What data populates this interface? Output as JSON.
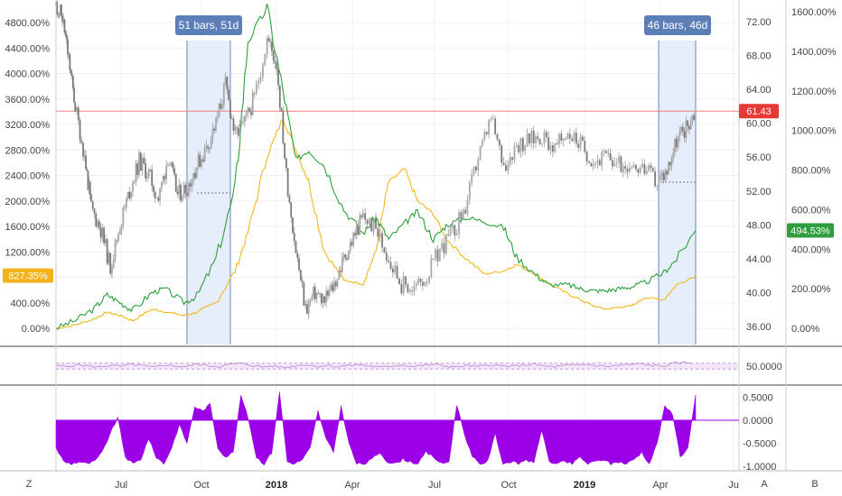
{
  "colors": {
    "green": "#2e9e3e",
    "orange": "#f2b81a",
    "grey": "#8c8c8c",
    "purple": "#9b00e6",
    "red_line": "#f08080",
    "range_fill": "#dce6fa",
    "range_badge": "#5d7fb8",
    "orange_badge": "#f5b31b",
    "green_badge": "#2e9e3e",
    "red_badge": "#e53935"
  },
  "ranges": [
    {
      "label": "51 bars, 51d"
    },
    {
      "label": "46 bars, 46d"
    }
  ],
  "badges": {
    "price": "61.43",
    "orange_pct": "827.35%",
    "green_pct": "494.53%"
  },
  "corner": {
    "left": "Z",
    "a": "A",
    "b": "B"
  },
  "chart_data": [
    {
      "type": "line",
      "name": "main-price-panel",
      "x_ticks": [
        "Jul",
        "Oct",
        "2018",
        "Apr",
        "Jul",
        "Oct",
        "2019",
        "Apr",
        "Ju"
      ],
      "left_axis": {
        "ticks": [
          "4800.00%",
          "4400.00%",
          "4000.00%",
          "3600.00%",
          "3200.00%",
          "2800.00%",
          "2400.00%",
          "2000.00%",
          "1600.00%",
          "1200.00%",
          "800.00%",
          "400.00%",
          "0.00%"
        ],
        "range": [
          0,
          5000
        ]
      },
      "price_axis": {
        "ticks": [
          "72.00",
          "68.00",
          "64.00",
          "60.00",
          "56.00",
          "52.00",
          "48.00",
          "44.00",
          "40.00",
          "36.00"
        ],
        "range": [
          34.4,
          75.0
        ]
      },
      "right_axis": {
        "ticks": [
          "1600.00%",
          "1400.00%",
          "1200.00%",
          "1000.00%",
          "800.00%",
          "600.00%",
          "400.00%",
          "200.00%",
          "0.00%"
        ],
        "range": [
          -30,
          1640
        ]
      },
      "grey_price_series": {
        "t": [
          0.0,
          0.01,
          0.02,
          0.03,
          0.045,
          0.055,
          0.07,
          0.085,
          0.1,
          0.115,
          0.13,
          0.145,
          0.16,
          0.175,
          0.19,
          0.205,
          0.22,
          0.235,
          0.25,
          0.265,
          0.28,
          0.295,
          0.31,
          0.33,
          0.345,
          0.36,
          0.375,
          0.39,
          0.405,
          0.42,
          0.435,
          0.45,
          0.465,
          0.48,
          0.5,
          0.52,
          0.54,
          0.56,
          0.58,
          0.6,
          0.62,
          0.64,
          0.66,
          0.68,
          0.7,
          0.72,
          0.74,
          0.76,
          0.78,
          0.8,
          0.82,
          0.84,
          0.86,
          0.88,
          0.9,
          0.92,
          0.94,
          0.955,
          0.97,
          0.985,
          1.0
        ],
        "v": [
          74.0,
          72.5,
          67.5,
          62.0,
          56.0,
          50.0,
          47.5,
          43.0,
          48.0,
          52.0,
          55.5,
          54.0,
          51.0,
          56.0,
          51.5,
          52.5,
          55.0,
          57.0,
          60.0,
          64.5,
          58.5,
          60.0,
          63.0,
          70.0,
          67.0,
          54.0,
          45.0,
          38.0,
          40.0,
          39.0,
          41.0,
          44.0,
          46.5,
          49.0,
          47.5,
          44.0,
          41.0,
          40.5,
          42.0,
          45.0,
          47.0,
          50.0,
          56.0,
          60.5,
          55.0,
          57.5,
          58.0,
          58.5,
          57.0,
          59.0,
          57.5,
          55.5,
          56.0,
          55.0,
          55.5,
          54.5,
          53.0,
          54.5,
          58.0,
          59.5,
          61.43
        ]
      },
      "series": [
        {
          "name": "",
          "color": "orange",
          "x": [
            0.0,
            0.03,
            0.06,
            0.08,
            0.1,
            0.12,
            0.15,
            0.17,
            0.2,
            0.22,
            0.25,
            0.28,
            0.3,
            0.33,
            0.355,
            0.375,
            0.395,
            0.42,
            0.45,
            0.48,
            0.5,
            0.52,
            0.545,
            0.565,
            0.59,
            0.61,
            0.64,
            0.67,
            0.7,
            0.72,
            0.75,
            0.77,
            0.8,
            0.82,
            0.84,
            0.86,
            0.88,
            0.9,
            0.92,
            0.95,
            0.97,
            1.0
          ],
          "y": [
            0,
            50,
            150,
            250,
            200,
            120,
            300,
            260,
            200,
            250,
            400,
            900,
            1500,
            2700,
            3300,
            2800,
            2300,
            1200,
            750,
            700,
            1200,
            2300,
            2500,
            2000,
            1800,
            1400,
            1100,
            850,
            900,
            1000,
            850,
            700,
            540,
            450,
            350,
            300,
            330,
            350,
            480,
            450,
            680,
            827.35
          ]
        },
        {
          "name": "",
          "color": "green",
          "x": [
            0.0,
            0.03,
            0.06,
            0.08,
            0.1,
            0.12,
            0.15,
            0.17,
            0.2,
            0.22,
            0.25,
            0.28,
            0.3,
            0.33,
            0.355,
            0.375,
            0.395,
            0.42,
            0.45,
            0.48,
            0.5,
            0.52,
            0.545,
            0.565,
            0.59,
            0.61,
            0.64,
            0.67,
            0.7,
            0.72,
            0.75,
            0.77,
            0.8,
            0.82,
            0.84,
            0.86,
            0.88,
            0.9,
            0.92,
            0.95,
            0.97,
            1.0
          ],
          "y": [
            0,
            40,
            100,
            170,
            130,
            90,
            180,
            200,
            130,
            160,
            350,
            700,
            1450,
            1620,
            1200,
            850,
            900,
            820,
            600,
            480,
            560,
            450,
            530,
            590,
            450,
            520,
            560,
            540,
            510,
            360,
            270,
            220,
            220,
            200,
            190,
            190,
            200,
            210,
            230,
            280,
            350,
            494.53
          ]
        }
      ],
      "price_line": 61.43,
      "measure_ranges": [
        [
          0.21,
          0.28
        ],
        [
          0.96,
          1.0
        ]
      ]
    },
    {
      "type": "line",
      "name": "oscillator-panel",
      "y_ticks": [
        "50.0000"
      ],
      "y_range": [
        0,
        100
      ],
      "band": [
        40,
        60
      ],
      "values": [
        52,
        48,
        55,
        50,
        47,
        53,
        49,
        56,
        51,
        46,
        54,
        50,
        48,
        57,
        52,
        49,
        55,
        60,
        53,
        47,
        51,
        45,
        50,
        56,
        49,
        53,
        48,
        52,
        55,
        50,
        46,
        51,
        54,
        49,
        53,
        56,
        50,
        47,
        52,
        48,
        55,
        51,
        49,
        53,
        57,
        50,
        48,
        52,
        54,
        56,
        51,
        49,
        53,
        55,
        58,
        52,
        50,
        60,
        62,
        63
      ]
    },
    {
      "type": "area",
      "name": "histogram-panel",
      "y_ticks": [
        "0.5000",
        "0.0000",
        "-0.5000",
        "-1.0000"
      ],
      "y_range": [
        -1.08,
        0.68
      ],
      "values": [
        -0.6,
        -0.9,
        -0.95,
        -0.9,
        -0.95,
        -0.9,
        -0.7,
        -0.3,
        0.05,
        -0.8,
        -0.95,
        -0.85,
        -0.4,
        -0.8,
        -0.95,
        -0.6,
        -0.1,
        -0.5,
        0.3,
        0.2,
        0.35,
        -0.6,
        -0.8,
        -0.7,
        0.55,
        0.0,
        -0.8,
        -0.95,
        -0.7,
        0.62,
        -0.9,
        -0.95,
        -0.85,
        -0.6,
        0.2,
        -0.4,
        -0.7,
        0.3,
        -0.5,
        -0.95,
        -0.95,
        -0.85,
        -0.7,
        -0.9,
        -0.95,
        -0.85,
        -0.9,
        -0.95,
        -0.7,
        -0.8,
        -0.95,
        -0.9,
        0.35,
        -0.3,
        -0.8,
        -0.95,
        -0.9,
        -0.3,
        -0.95,
        -0.9,
        -0.95,
        -0.85,
        -0.95,
        -0.2,
        -0.9,
        -0.95,
        -0.9,
        -0.95,
        -0.8,
        -0.95,
        -0.9,
        -0.85,
        -0.95,
        -0.9,
        -0.95,
        -0.85,
        -0.7,
        -0.95,
        -0.5,
        0.3,
        0.15,
        -0.8,
        -0.6,
        0.55
      ]
    }
  ]
}
